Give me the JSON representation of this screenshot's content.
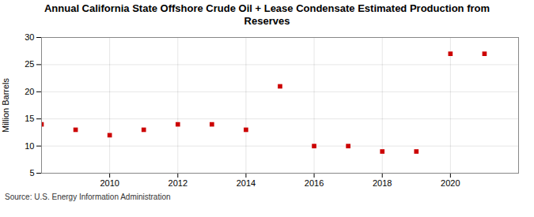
{
  "chart_data": {
    "type": "scatter",
    "title": "Annual California State Offshore Crude Oil + Lease Condensate Estimated Production from\nReserves",
    "ylabel": "Million Barrels",
    "annotations": [
      "Source: U.S. Energy Information Administration"
    ],
    "x": [
      2008,
      2009,
      2010,
      2011,
      2012,
      2013,
      2014,
      2015,
      2016,
      2017,
      2018,
      2019,
      2020,
      2021
    ],
    "values": [
      14.0,
      13.0,
      12.0,
      13.0,
      14.0,
      14.0,
      13.0,
      21.0,
      10.0,
      10.0,
      9.0,
      9.0,
      27.0,
      27.0
    ],
    "xlim": [
      2008.0,
      2022.0
    ],
    "ylim": [
      5,
      30
    ],
    "xticks": [
      2010,
      2012,
      2014,
      2016,
      2018,
      2020
    ],
    "yticks": [
      5,
      10,
      15,
      20,
      25,
      30
    ],
    "color": "#cc0000",
    "marker": "square",
    "grid": true
  }
}
